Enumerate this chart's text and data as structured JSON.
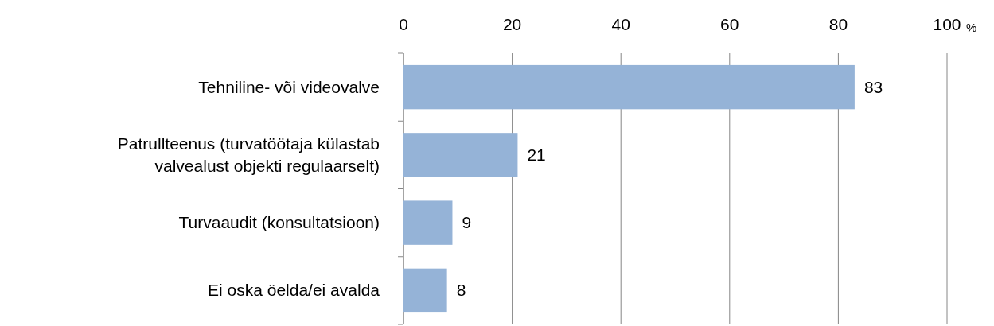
{
  "chart_data": {
    "type": "bar",
    "orientation": "horizontal",
    "xlabel": "%",
    "categories": [
      "Tehniline- või videovalve",
      "Patrullteenus (turvatöötaja külastab valvealust objekti regulaarselt)",
      "Turvaaudit (konsultatsioon)",
      "Ei oska öelda/ei avalda"
    ],
    "values": [
      83,
      21,
      9,
      8
    ],
    "color": "#95b3d7",
    "xlim": [
      0,
      100
    ],
    "xticks": [
      0,
      20,
      40,
      60,
      80,
      100
    ],
    "grid": "x",
    "data_labels": true
  }
}
